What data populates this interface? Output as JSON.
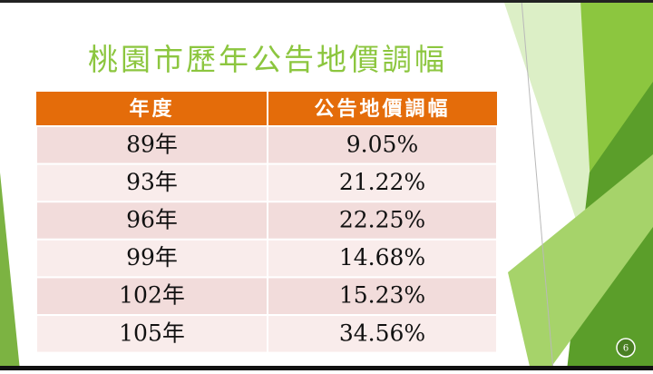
{
  "title": "桃園市歷年公告地價調幅",
  "table": {
    "header": [
      "年度",
      "公告地價調幅"
    ],
    "rows": [
      [
        "89年",
        "9.05%"
      ],
      [
        "93年",
        "21.22%"
      ],
      [
        "96年",
        "22.25%"
      ],
      [
        "99年",
        "14.68%"
      ],
      [
        "102年",
        "15.23%"
      ],
      [
        "105年",
        "34.56%"
      ]
    ]
  },
  "page_number": "6"
}
